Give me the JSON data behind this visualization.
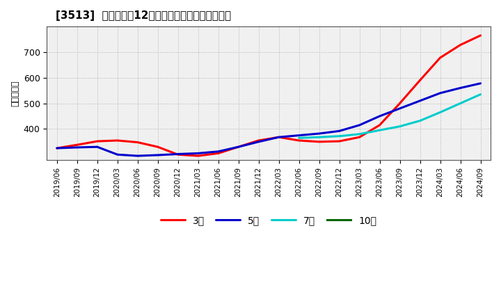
{
  "title": "[3513]  当期純利益12か月移動合計の平均値の推移",
  "ylabel": "（百万円）",
  "ylim": [
    278,
    800
  ],
  "yticks": [
    400,
    500,
    600,
    700
  ],
  "line_colors": {
    "3年": "#ff0000",
    "5年": "#0000cc",
    "7年": "#00cccc",
    "10年": "#006600"
  },
  "background_color": "#ffffff",
  "plot_bg_color": "#f0f0f0",
  "grid_color": "#aaaaaa",
  "dates": [
    "2019/06",
    "2019/09",
    "2019/12",
    "2020/03",
    "2020/06",
    "2020/09",
    "2020/12",
    "2021/03",
    "2021/06",
    "2021/09",
    "2021/12",
    "2022/03",
    "2022/06",
    "2022/09",
    "2022/12",
    "2023/03",
    "2023/06",
    "2023/09",
    "2023/12",
    "2024/03",
    "2024/06",
    "2024/09"
  ],
  "series_3y": [
    325,
    338,
    352,
    355,
    348,
    330,
    300,
    295,
    305,
    330,
    355,
    368,
    355,
    350,
    352,
    368,
    415,
    500,
    590,
    678,
    728,
    765
  ],
  "series_5y": [
    325,
    328,
    330,
    300,
    295,
    298,
    302,
    305,
    312,
    330,
    350,
    368,
    375,
    382,
    392,
    415,
    450,
    480,
    510,
    540,
    560,
    578
  ],
  "series_7y": [
    null,
    null,
    null,
    null,
    null,
    null,
    null,
    null,
    null,
    null,
    null,
    null,
    365,
    368,
    372,
    380,
    395,
    410,
    432,
    465,
    500,
    535
  ],
  "series_10y": [
    null,
    null,
    null,
    null,
    null,
    null,
    null,
    null,
    null,
    null,
    null,
    null,
    null,
    null,
    null,
    null,
    null,
    null,
    null,
    null,
    null,
    null
  ]
}
